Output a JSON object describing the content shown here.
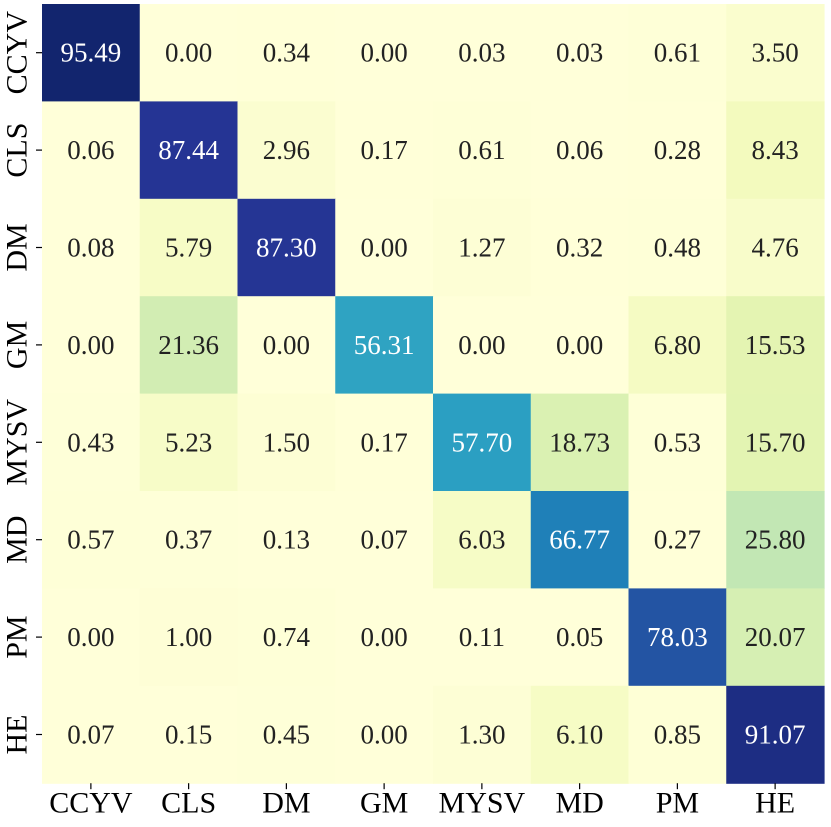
{
  "chart_data": {
    "type": "heatmap",
    "title": "",
    "xlabel": "",
    "ylabel": "",
    "x_categories": [
      "CCYV",
      "CLS",
      "DM",
      "GM",
      "MYSV",
      "MD",
      "PM",
      "HE"
    ],
    "y_categories": [
      "CCYV",
      "CLS",
      "DM",
      "GM",
      "MYSV",
      "MD",
      "PM",
      "HE"
    ],
    "values": [
      [
        95.49,
        0.0,
        0.34,
        0.0,
        0.03,
        0.03,
        0.61,
        3.5
      ],
      [
        0.06,
        87.44,
        2.96,
        0.17,
        0.61,
        0.06,
        0.28,
        8.43
      ],
      [
        0.08,
        5.79,
        87.3,
        0.0,
        1.27,
        0.32,
        0.48,
        4.76
      ],
      [
        0.0,
        21.36,
        0.0,
        56.31,
        0.0,
        0.0,
        6.8,
        15.53
      ],
      [
        0.43,
        5.23,
        1.5,
        0.17,
        57.7,
        18.73,
        0.53,
        15.7
      ],
      [
        0.57,
        0.37,
        0.13,
        0.07,
        6.03,
        66.77,
        0.27,
        25.8
      ],
      [
        0.0,
        1.0,
        0.74,
        0.0,
        0.11,
        0.05,
        78.03,
        20.07
      ],
      [
        0.07,
        0.15,
        0.45,
        0.0,
        1.3,
        6.1,
        0.85,
        91.07
      ]
    ],
    "value_format": "two-decimals",
    "colormap": "YlGnBu",
    "vmin": 0,
    "vmax": 100,
    "colorbar": false,
    "grid": false,
    "text_color_light": "#ffffff",
    "text_color_dark": "#222222"
  }
}
